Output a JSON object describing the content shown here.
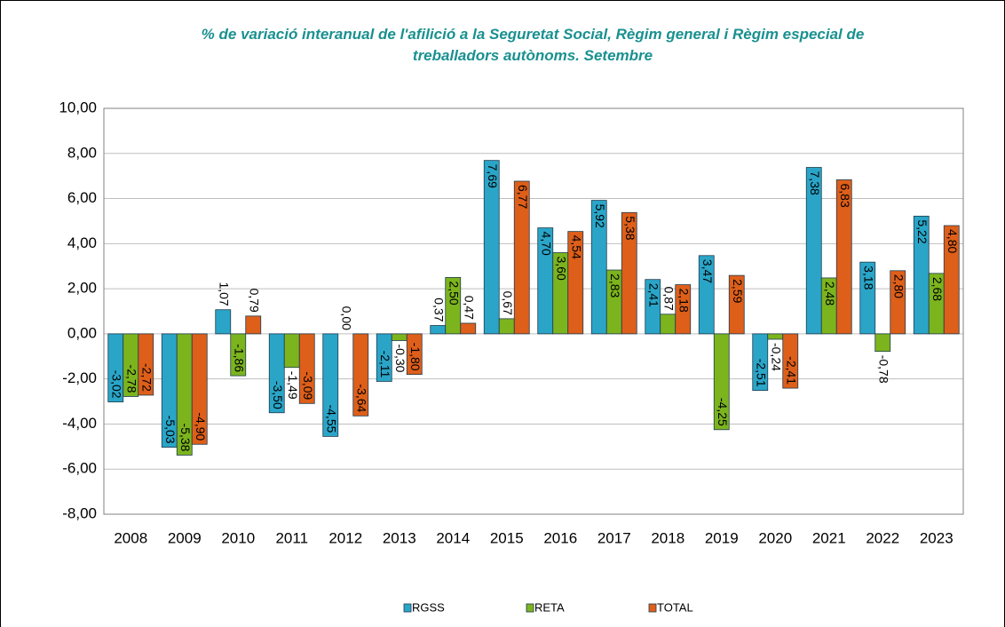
{
  "chart_data": {
    "type": "bar",
    "title": "% de variació interanual de l'afilició a la Seguretat Social, Règim general i Règim especial de treballadors autònoms. Setembre",
    "categories": [
      "2008",
      "2009",
      "2010",
      "2011",
      "2012",
      "2013",
      "2014",
      "2015",
      "2016",
      "2017",
      "2018",
      "2019",
      "2020",
      "2021",
      "2022",
      "2023"
    ],
    "series": [
      {
        "name": "RGSS",
        "color": "#2aa5c8",
        "values": [
          -3.02,
          -5.03,
          1.07,
          -3.5,
          -4.55,
          -2.11,
          0.37,
          7.69,
          4.7,
          5.92,
          2.41,
          3.47,
          -2.51,
          7.38,
          3.18,
          5.22
        ],
        "value_labels": [
          "-3,02",
          "-5,03",
          "1,07",
          "-3,50",
          "-4,55",
          "-2,11",
          "0,37",
          "7,69",
          "4,70",
          "5,92",
          "2,41",
          "3,47",
          "-2,51",
          "7,38",
          "3,18",
          "5,22"
        ]
      },
      {
        "name": "RETA",
        "color": "#7cb41e",
        "values": [
          -2.78,
          -5.38,
          -1.86,
          -1.49,
          0.0,
          -0.3,
          2.5,
          0.67,
          3.6,
          2.83,
          0.87,
          -4.25,
          -0.24,
          2.48,
          -0.78,
          2.68
        ],
        "value_labels": [
          "-2,78",
          "-5,38",
          "-1,86",
          "-1,49",
          "0,00",
          "-0,30",
          "2,50",
          "0,67",
          "3,60",
          "2,83",
          "0,87",
          "-4,25",
          "-0,24",
          "2,48",
          "-0,78",
          "2,68"
        ]
      },
      {
        "name": "TOTAL",
        "color": "#de5f1a",
        "values": [
          -2.72,
          -4.9,
          0.79,
          -3.09,
          -3.64,
          -1.8,
          0.47,
          6.77,
          4.54,
          5.38,
          2.18,
          2.59,
          -2.41,
          6.83,
          2.8,
          4.8
        ],
        "value_labels": [
          "-2,72",
          "-4,90",
          "0,79",
          "-3,09",
          "-3,64",
          "-1,80",
          "0,47",
          "6,77",
          "4,54",
          "5,38",
          "2,18",
          "2,59",
          "-2,41",
          "6,83",
          "2,80",
          "4,80"
        ]
      }
    ],
    "ylim": [
      -8,
      10
    ],
    "yticks": [
      {
        "value": -8,
        "label": "-8,00"
      },
      {
        "value": -6,
        "label": "-6,00"
      },
      {
        "value": -4,
        "label": "-4,00"
      },
      {
        "value": -2,
        "label": "-2,00"
      },
      {
        "value": 0,
        "label": "0,00"
      },
      {
        "value": 2,
        "label": "2,00"
      },
      {
        "value": 4,
        "label": "4,00"
      },
      {
        "value": 6,
        "label": "6,00"
      },
      {
        "value": 8,
        "label": "8,00"
      },
      {
        "value": 10,
        "label": "10,00"
      }
    ],
    "grid": true,
    "legend": "bottom"
  }
}
